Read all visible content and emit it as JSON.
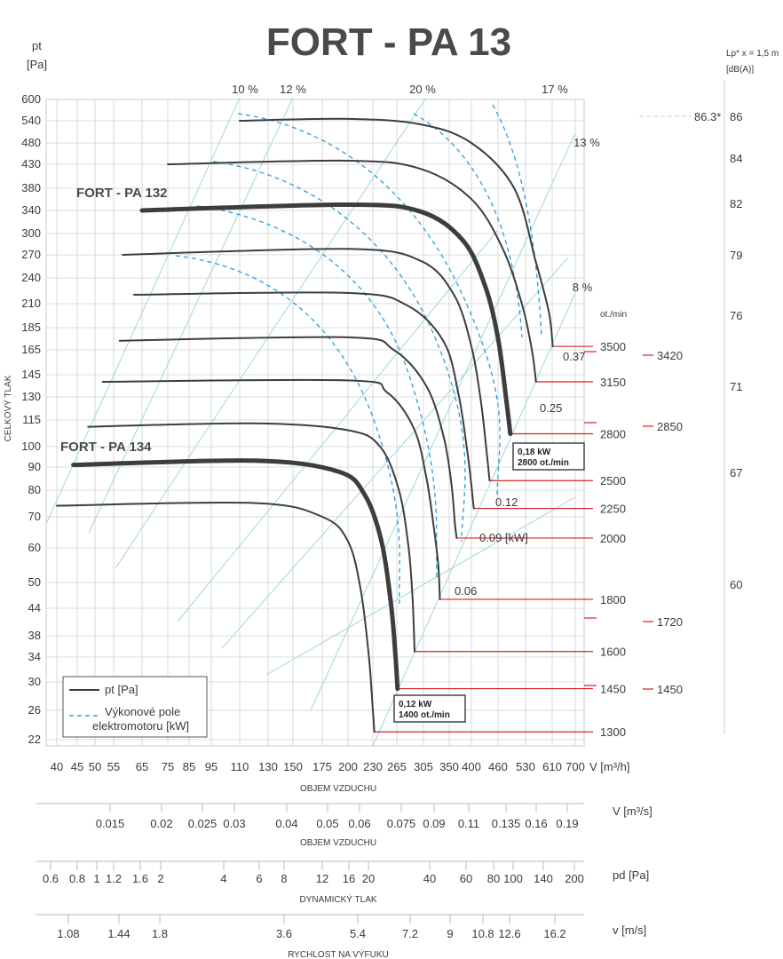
{
  "chart_data": {
    "type": "line",
    "title": "FORT - PA 13",
    "ylabel": "pt\n[Pa]",
    "y_axis_caption": "CELKOVÝ TLAK",
    "xlabel": "V [m³/h]",
    "x_axis_caption": "OBJEM VZDUCHU",
    "sound_axis_label": "Lp* x = 1,5 m\n[dB(A)]",
    "x_ticks": [
      40,
      45,
      50,
      55,
      65,
      75,
      85,
      95,
      110,
      130,
      150,
      175,
      200,
      230,
      265,
      305,
      350,
      400,
      460,
      530,
      610,
      700
    ],
    "y_ticks": [
      22,
      26,
      30,
      34,
      38,
      44,
      50,
      60,
      70,
      80,
      90,
      100,
      115,
      130,
      145,
      165,
      185,
      210,
      240,
      270,
      300,
      340,
      380,
      430,
      480,
      540,
      600
    ],
    "efficiency_labels": [
      "10 %",
      "12 %",
      "20 %",
      "17 %",
      "13 %",
      "8 %"
    ],
    "speed_unit": "ot./min",
    "speeds": [
      3500,
      3150,
      2800,
      2500,
      2250,
      2000,
      1800,
      1600,
      1450,
      1300
    ],
    "speeds_side": [
      3420,
      2850,
      1720,
      1450
    ],
    "power_labels": [
      "0.37",
      "0.25",
      "0.12",
      "0.09  [kW]",
      "0.06"
    ],
    "sound_levels": [
      {
        "label": "86.3*",
        "db": "86"
      },
      {
        "db": "84"
      },
      {
        "db": "82"
      },
      {
        "db": "79"
      },
      {
        "db": "76"
      },
      {
        "db": "71"
      },
      {
        "db": "67"
      },
      {
        "db": "60"
      }
    ],
    "models": [
      {
        "name": "FORT - PA 132",
        "box_line1": "0,18 kW",
        "box_line2": "2800 ot./min"
      },
      {
        "name": "FORT - PA 134",
        "box_line1": "0,12 kW",
        "box_line2": "1400 ot./min"
      }
    ],
    "series": [
      {
        "rpm": 3500,
        "points": [
          [
            110,
            540
          ],
          [
            200,
            545
          ],
          [
            300,
            530
          ],
          [
            400,
            480
          ],
          [
            500,
            380
          ],
          [
            560,
            260
          ],
          [
            600,
            200
          ],
          [
            612,
            168
          ]
        ]
      },
      {
        "rpm": 3150,
        "points": [
          [
            75,
            430
          ],
          [
            200,
            438
          ],
          [
            300,
            420
          ],
          [
            400,
            360
          ],
          [
            470,
            280
          ],
          [
            520,
            210
          ],
          [
            548,
            165
          ],
          [
            560,
            140
          ]
        ]
      },
      {
        "rpm": 2800,
        "points": [
          [
            65,
            340
          ],
          [
            200,
            350
          ],
          [
            300,
            338
          ],
          [
            380,
            290
          ],
          [
            430,
            230
          ],
          [
            460,
            175
          ],
          [
            480,
            128
          ],
          [
            490,
            107
          ]
        ]
      },
      {
        "rpm": 2500,
        "points": [
          [
            58,
            270
          ],
          [
            200,
            278
          ],
          [
            300,
            262
          ],
          [
            360,
            220
          ],
          [
            400,
            168
          ],
          [
            420,
            128
          ],
          [
            433,
            98
          ],
          [
            440,
            84
          ]
        ]
      },
      {
        "rpm": 2250,
        "points": [
          [
            62,
            220
          ],
          [
            200,
            222
          ],
          [
            280,
            208
          ],
          [
            340,
            172
          ],
          [
            370,
            132
          ],
          [
            390,
            98
          ],
          [
            400,
            82
          ],
          [
            405,
            73
          ]
        ]
      },
      {
        "rpm": 2000,
        "points": [
          [
            57,
            173
          ],
          [
            200,
            176
          ],
          [
            260,
            165
          ],
          [
            310,
            137
          ],
          [
            340,
            105
          ],
          [
            355,
            82
          ],
          [
            362,
            68
          ],
          [
            366,
            63
          ]
        ]
      },
      {
        "rpm": 1800,
        "points": [
          [
            52,
            140
          ],
          [
            200,
            141
          ],
          [
            250,
            133
          ],
          [
            290,
            110
          ],
          [
            310,
            85
          ],
          [
            322,
            67
          ],
          [
            330,
            55
          ],
          [
            333,
            46
          ]
        ]
      },
      {
        "rpm": 1600,
        "points": [
          [
            48,
            111
          ],
          [
            120,
            113
          ],
          [
            200,
            109
          ],
          [
            240,
            100
          ],
          [
            268,
            80
          ],
          [
            282,
            60
          ],
          [
            288,
            46
          ],
          [
            291,
            35
          ]
        ]
      },
      {
        "rpm": 1450,
        "points": [
          [
            44,
            91
          ],
          [
            120,
            93
          ],
          [
            190,
            88
          ],
          [
            220,
            78
          ],
          [
            242,
            62
          ],
          [
            256,
            45
          ],
          [
            263,
            34
          ],
          [
            266,
            29
          ]
        ]
      },
      {
        "rpm": 1300,
        "points": [
          [
            40,
            74
          ],
          [
            120,
            75
          ],
          [
            175,
            70
          ],
          [
            200,
            62
          ],
          [
            215,
            48
          ],
          [
            225,
            34
          ],
          [
            230,
            26
          ],
          [
            232,
            23
          ]
        ]
      }
    ],
    "bottom_scales": [
      {
        "label": "V  [m³/s]",
        "caption": "OBJEM VZDUCHU",
        "ticks": [
          "0.015",
          "0.02",
          "0.025",
          "0.03",
          "0.04",
          "0.05",
          "0.06",
          "0.075",
          "0.09",
          "0.11",
          "0.135",
          "0.16",
          "0.19"
        ]
      },
      {
        "label": "pd  [Pa]",
        "caption": "DYNAMICKÝ TLAK",
        "ticks": [
          "0.6",
          "0.8",
          "1",
          "1.2",
          "1.6",
          "2",
          "4",
          "6",
          "8",
          "12",
          "16",
          "20",
          "40",
          "60",
          "80",
          "100",
          "140",
          "200"
        ]
      },
      {
        "label": "v  [m/s]",
        "caption": "RYCHLOST NA VÝFUKU",
        "ticks": [
          "1.08",
          "1.44",
          "1.8",
          "3.6",
          "5.4",
          "7.2",
          "9",
          "10.8",
          "12.6",
          "16.2"
        ]
      }
    ],
    "legend": {
      "position": "bottom-left",
      "items": [
        {
          "style": "solid",
          "label": "pt [Pa]",
          "color": "#333333"
        },
        {
          "style": "dashed",
          "label": "Výkonové pole\nelektromotoru  [kW]",
          "color": "#2a9fd6"
        }
      ]
    },
    "colors": {
      "curve": "#3d3d3d",
      "power": "#2a9fd6",
      "speed_line": "#d42020",
      "efficiency": "#9fd8d8",
      "grid": "#d0d0d0"
    }
  }
}
